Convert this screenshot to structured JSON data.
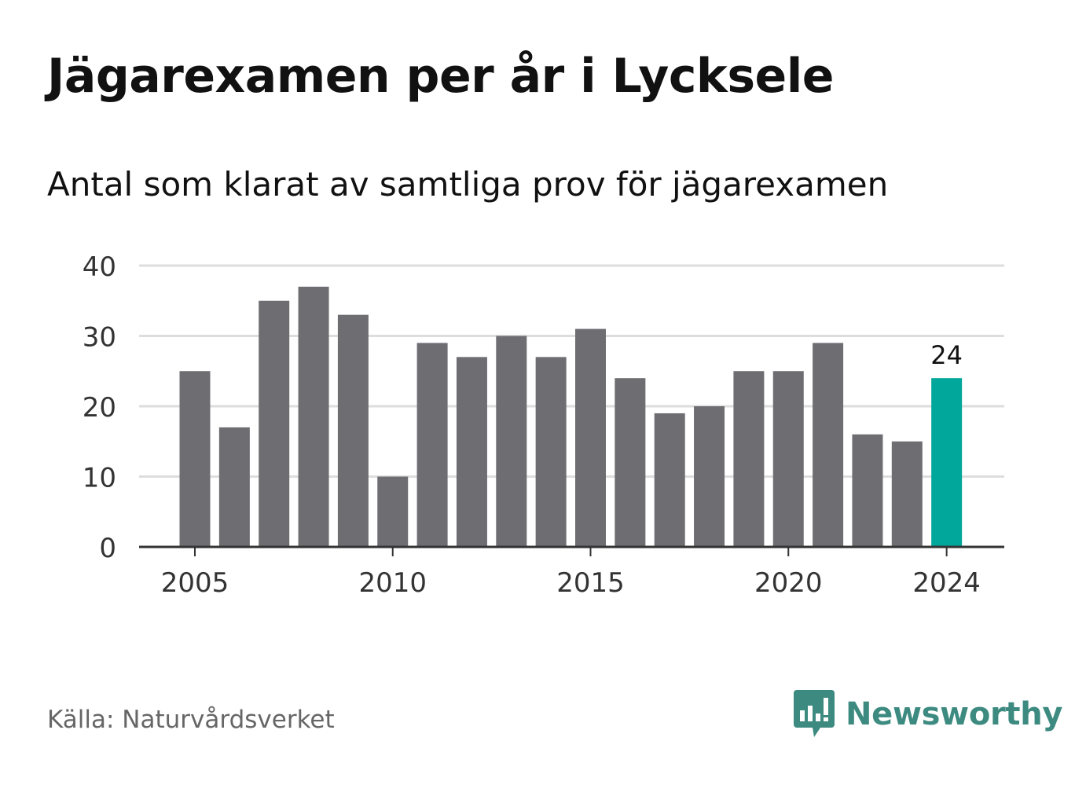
{
  "title": "Jägarexamen per år i Lycksele",
  "subtitle": "Antal som klarat av samtliga prov för jägarexamen",
  "source": "Källa: Naturvårdsverket",
  "brand": {
    "name": "Newsworthy",
    "icon": "newsworthy-logo-icon",
    "color": "#3d8a80"
  },
  "colors": {
    "bar": "#6e6d72",
    "highlight": "#00a79a",
    "grid": "#dddddd",
    "axis": "#333333"
  },
  "chart_data": {
    "type": "bar",
    "categories": [
      "2005",
      "2006",
      "2007",
      "2008",
      "2009",
      "2010",
      "2011",
      "2012",
      "2013",
      "2014",
      "2015",
      "2016",
      "2017",
      "2018",
      "2019",
      "2020",
      "2021",
      "2022",
      "2023",
      "2024"
    ],
    "values": [
      25,
      17,
      35,
      37,
      33,
      10,
      29,
      27,
      30,
      27,
      31,
      24,
      19,
      20,
      25,
      25,
      29,
      16,
      15,
      24
    ],
    "highlight_index": 19,
    "data_labels": [
      {
        "index": 19,
        "text": "24"
      }
    ],
    "x_tick_labels": [
      "2005",
      "2010",
      "2015",
      "2020",
      "2024"
    ],
    "y_ticks": [
      0,
      10,
      20,
      30,
      40
    ],
    "ylim": [
      0,
      40
    ],
    "grid": true,
    "legend": false,
    "xlabel": "",
    "ylabel": ""
  }
}
